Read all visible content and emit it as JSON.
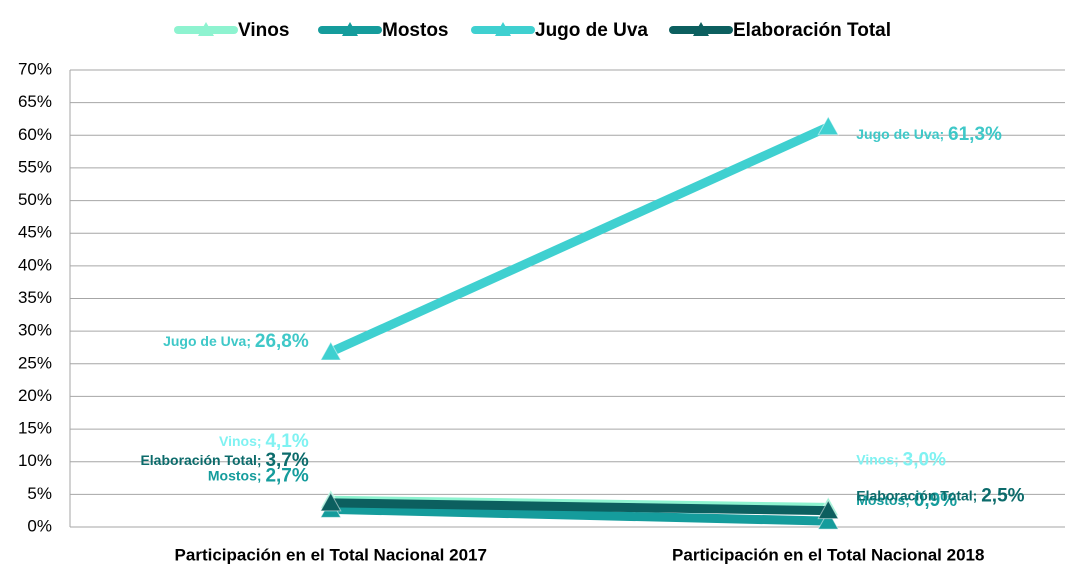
{
  "chart_data": {
    "type": "line",
    "categories": [
      "Participación en el Total Nacional 2017",
      "Participación en el Total Nacional 2018"
    ],
    "series": [
      {
        "name": "Vinos",
        "color": "#8ef3d0",
        "label_color": "#7ff2f2",
        "values": [
          4.1,
          3.0
        ],
        "value_labels": [
          "Vinos; 4,1%",
          "Vinos; 3,0%"
        ]
      },
      {
        "name": "Mostos",
        "color": "#159c9c",
        "label_color": "#159c9c",
        "values": [
          2.7,
          0.9
        ],
        "value_labels": [
          "Mostos; 2,7%",
          "Mostos; 0,9%"
        ]
      },
      {
        "name": "Jugo de Uva",
        "color": "#3fd0d0",
        "label_color": "#3fc8c8",
        "values": [
          26.8,
          61.3
        ],
        "value_labels": [
          "Jugo de Uva; 26,8%",
          "Jugo de Uva; 61,3%"
        ]
      },
      {
        "name": "Elaboración Total",
        "color": "#0c5f5f",
        "label_color": "#0c6b6b",
        "values": [
          3.7,
          2.5
        ],
        "value_labels": [
          "Elaboración Total; 3,7%",
          "Elaboración Total; 2,5%"
        ]
      }
    ],
    "ylim": [
      0,
      70
    ],
    "yticks": [
      {
        "value": 0,
        "label": "0%"
      },
      {
        "value": 5,
        "label": "5%"
      },
      {
        "value": 10,
        "label": "10%"
      },
      {
        "value": 15,
        "label": "15%"
      },
      {
        "value": 20,
        "label": "20%"
      },
      {
        "value": 25,
        "label": "25%"
      },
      {
        "value": 30,
        "label": "30%"
      },
      {
        "value": 35,
        "label": "35%"
      },
      {
        "value": 40,
        "label": "40%"
      },
      {
        "value": 45,
        "label": "45%"
      },
      {
        "value": 50,
        "label": "50%"
      },
      {
        "value": 55,
        "label": "55%"
      },
      {
        "value": 60,
        "label": "60%"
      },
      {
        "value": 65,
        "label": "65%"
      },
      {
        "value": 70,
        "label": "70%"
      }
    ],
    "grid": true,
    "legend": "top"
  }
}
